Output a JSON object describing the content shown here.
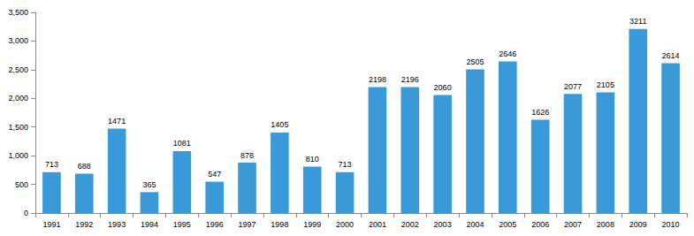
{
  "chart_data": {
    "type": "bar",
    "categories": [
      "1991",
      "1992",
      "1993",
      "1994",
      "1995",
      "1996",
      "1997",
      "1998",
      "1999",
      "2000",
      "2001",
      "2002",
      "2003",
      "2004",
      "2005",
      "2006",
      "2007",
      "2008",
      "2009",
      "2010"
    ],
    "values": [
      713,
      688,
      1471,
      365,
      1081,
      547,
      878,
      1405,
      810,
      713,
      2198,
      2196,
      2060,
      2505,
      2646,
      1626,
      2077,
      2105,
      3211,
      2614
    ],
    "color": "#3a9ad9",
    "ylim": [
      0,
      3500
    ],
    "yticks": [
      0,
      500,
      1000,
      1500,
      2000,
      2500,
      3000,
      3500
    ],
    "grid": false,
    "data_labels": true
  }
}
